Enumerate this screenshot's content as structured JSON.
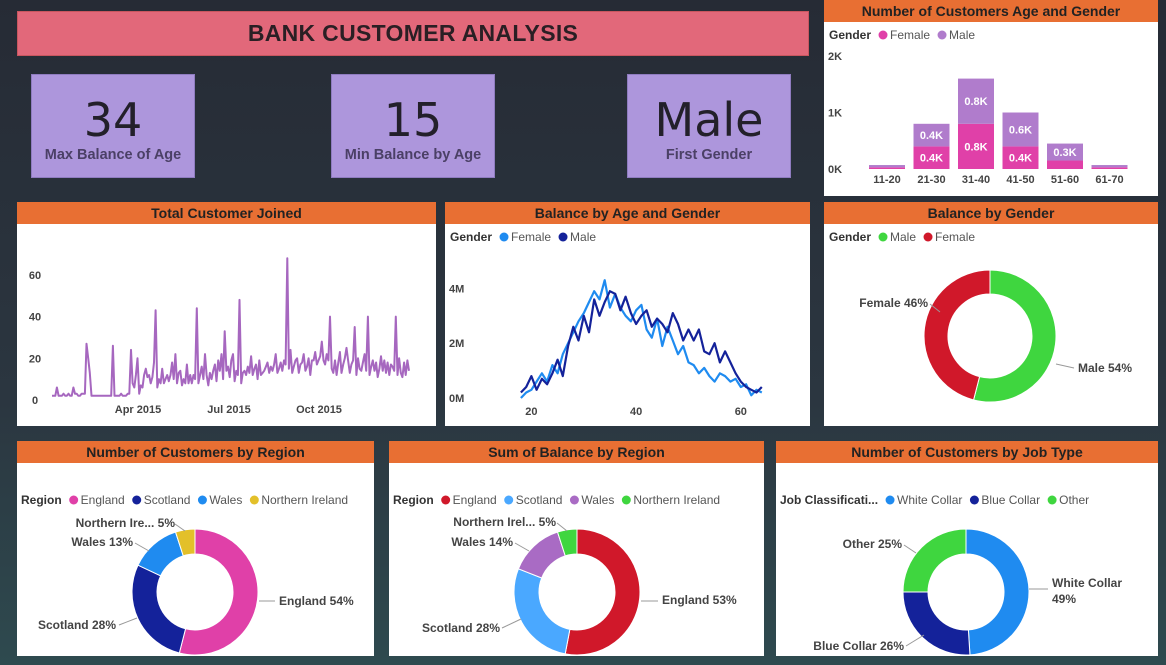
{
  "page": {
    "title": "BANK CUSTOMER ANALYSIS"
  },
  "kpis": [
    {
      "value": "34",
      "label": "Max Balance of Age"
    },
    {
      "value": "15",
      "label": "Min Balance by Age"
    },
    {
      "value": "Male",
      "label": "First Gender"
    }
  ],
  "colors": {
    "female_pink": "#e040a8",
    "male_purple": "#b07ccc",
    "light_blue": "#1f8bf0",
    "dark_blue": "#14229a",
    "green": "#3fd63f",
    "red": "#d0182a",
    "yellow": "#e3c02a",
    "line_purple": "#a667bf",
    "sky": "#4aa8ff",
    "violet": "#a96bc4",
    "header_orange": "#e86f33"
  },
  "chart_data": [
    {
      "id": "age_gender",
      "type": "bar",
      "stacked": true,
      "title": "Number of Customers Age and Gender",
      "legend_title": "Gender",
      "categories": [
        "11-20",
        "21-30",
        "31-40",
        "41-50",
        "51-60",
        "61-70"
      ],
      "series": [
        {
          "name": "Female",
          "values": [
            30,
            400,
            800,
            400,
            150,
            30
          ],
          "labels": [
            "",
            "0.4K",
            "0.8K",
            "0.4K",
            "",
            ""
          ]
        },
        {
          "name": "Male",
          "values": [
            40,
            400,
            800,
            600,
            300,
            40
          ],
          "labels": [
            "",
            "0.4K",
            "0.8K",
            "0.6K",
            "0.3K",
            ""
          ]
        }
      ],
      "yticks": [
        "0K",
        "1K",
        "2K"
      ],
      "ylim": [
        0,
        2000
      ]
    },
    {
      "id": "joined",
      "type": "line",
      "title": "Total Customer Joined",
      "xticks": [
        "Apr 2015",
        "Jul 2015",
        "Oct 2015"
      ],
      "yticks": [
        "0",
        "20",
        "40",
        "60"
      ],
      "ylim": [
        0,
        70
      ],
      "values": [
        2,
        2,
        2,
        6,
        2,
        2,
        2,
        3,
        2,
        2,
        3,
        2,
        2,
        6,
        3,
        3,
        2,
        2,
        3,
        3,
        3,
        27,
        20,
        13,
        2,
        2,
        2,
        2,
        2,
        2,
        2,
        2,
        2,
        2,
        2,
        2,
        2,
        26,
        2,
        2,
        2,
        2,
        3,
        2,
        2,
        2,
        3,
        3,
        24,
        8,
        6,
        12,
        20,
        3,
        7,
        6,
        12,
        15,
        11,
        12,
        8,
        11,
        18,
        43,
        6,
        10,
        8,
        15,
        8,
        10,
        12,
        9,
        12,
        18,
        10,
        22,
        8,
        13,
        14,
        7,
        10,
        8,
        17,
        8,
        12,
        8,
        12,
        10,
        44,
        8,
        12,
        16,
        10,
        22,
        12,
        7,
        13,
        10,
        14,
        17,
        9,
        19,
        14,
        22,
        10,
        33,
        14,
        16,
        11,
        19,
        22,
        9,
        14,
        12,
        48,
        8,
        13,
        14,
        12,
        16,
        13,
        21,
        12,
        15,
        17,
        10,
        19,
        12,
        13,
        14,
        16,
        18,
        13,
        16,
        14,
        17,
        22,
        13,
        15,
        18,
        14,
        19,
        17,
        68,
        15,
        24,
        13,
        16,
        19,
        20,
        13,
        17,
        18,
        22,
        14,
        16,
        20,
        12,
        19,
        19,
        23,
        17,
        19,
        21,
        28,
        19,
        17,
        22,
        19,
        40,
        15,
        13,
        19,
        12,
        18,
        23,
        13,
        17,
        20,
        25,
        19,
        13,
        17,
        19,
        35,
        12,
        20,
        15,
        14,
        18,
        22,
        14,
        40,
        12,
        16,
        19,
        14,
        18,
        11,
        15,
        21,
        14,
        19,
        13,
        18,
        12,
        17,
        16,
        14,
        40,
        12,
        20,
        13,
        11,
        18,
        12,
        19,
        14
      ]
    },
    {
      "id": "balance_age",
      "type": "line",
      "title": "Balance by Age and Gender",
      "legend_title": "Gender",
      "x": [
        18,
        19,
        20,
        21,
        22,
        23,
        24,
        25,
        26,
        27,
        28,
        29,
        30,
        31,
        32,
        33,
        34,
        35,
        36,
        37,
        38,
        39,
        40,
        41,
        42,
        43,
        44,
        45,
        46,
        47,
        48,
        49,
        50,
        51,
        52,
        53,
        54,
        55,
        56,
        57,
        58,
        59,
        60,
        61,
        62,
        63,
        64
      ],
      "series": [
        {
          "name": "Female",
          "values": [
            0.0,
            0.2,
            0.3,
            0.6,
            0.9,
            0.6,
            1.2,
            0.9,
            1.6,
            2.0,
            2.4,
            2.8,
            3.1,
            3.5,
            3.9,
            3.6,
            4.3,
            3.3,
            3.8,
            3.3,
            3.0,
            2.8,
            3.2,
            3.4,
            2.5,
            2.2,
            2.9,
            1.9,
            2.6,
            2.1,
            1.6,
            1.9,
            1.3,
            1.2,
            0.9,
            1.1,
            0.8,
            0.6,
            0.9,
            0.8,
            0.6,
            0.7,
            0.4,
            0.5,
            0.1,
            0.3,
            0.2
          ]
        },
        {
          "name": "Male",
          "values": [
            0.2,
            0.4,
            0.8,
            0.3,
            0.7,
            0.5,
            0.9,
            1.4,
            0.8,
            1.9,
            2.6,
            2.1,
            3.0,
            2.4,
            3.6,
            3.0,
            3.5,
            3.9,
            3.8,
            3.2,
            3.7,
            3.1,
            2.7,
            3.0,
            3.2,
            2.6,
            2.9,
            2.7,
            2.4,
            3.1,
            2.7,
            2.1,
            2.5,
            2.1,
            2.5,
            1.7,
            1.6,
            2.0,
            1.3,
            1.7,
            1.3,
            0.9,
            0.6,
            0.4,
            0.3,
            0.2,
            0.4
          ]
        }
      ],
      "xticks": [
        "20",
        "40",
        "60"
      ],
      "yticks": [
        "0M",
        "2M",
        "4M"
      ],
      "xlim": [
        14,
        65
      ],
      "ylim": [
        0,
        4.6
      ]
    },
    {
      "id": "balance_gender",
      "type": "pie",
      "donut": true,
      "title": "Balance by Gender",
      "legend_title": "Gender",
      "slices": [
        {
          "name": "Male",
          "value": 54,
          "label": "Male 54%"
        },
        {
          "name": "Female",
          "value": 46,
          "label": "Female 46%"
        }
      ]
    },
    {
      "id": "cust_region",
      "type": "pie",
      "donut": true,
      "title": "Number of Customers by Region",
      "legend_title": "Region",
      "slices": [
        {
          "name": "England",
          "value": 54,
          "label": "England 54%"
        },
        {
          "name": "Scotland",
          "value": 28,
          "label": "Scotland 28%"
        },
        {
          "name": "Wales",
          "value": 13,
          "label": "Wales 13%"
        },
        {
          "name": "Northern Ireland",
          "value": 5,
          "label": "Northern Ire... 5%"
        }
      ]
    },
    {
      "id": "balance_region",
      "type": "pie",
      "donut": true,
      "title": "Sum of Balance by Region",
      "legend_title": "Region",
      "slices": [
        {
          "name": "England",
          "value": 53,
          "label": "England 53%"
        },
        {
          "name": "Scotland",
          "value": 28,
          "label": "Scotland 28%"
        },
        {
          "name": "Wales",
          "value": 14,
          "label": "Wales 14%"
        },
        {
          "name": "Northern Ireland",
          "value": 5,
          "label": "Northern Irel... 5%"
        }
      ]
    },
    {
      "id": "job_type",
      "type": "pie",
      "donut": true,
      "title": "Number of Customers by Job Type",
      "legend_title": "Job Classificati...",
      "slices": [
        {
          "name": "White Collar",
          "value": 49,
          "label": "White Collar",
          "label2": "49%"
        },
        {
          "name": "Blue Collar",
          "value": 26,
          "label": "Blue Collar 26%"
        },
        {
          "name": "Other",
          "value": 25,
          "label": "Other 25%"
        }
      ]
    }
  ]
}
